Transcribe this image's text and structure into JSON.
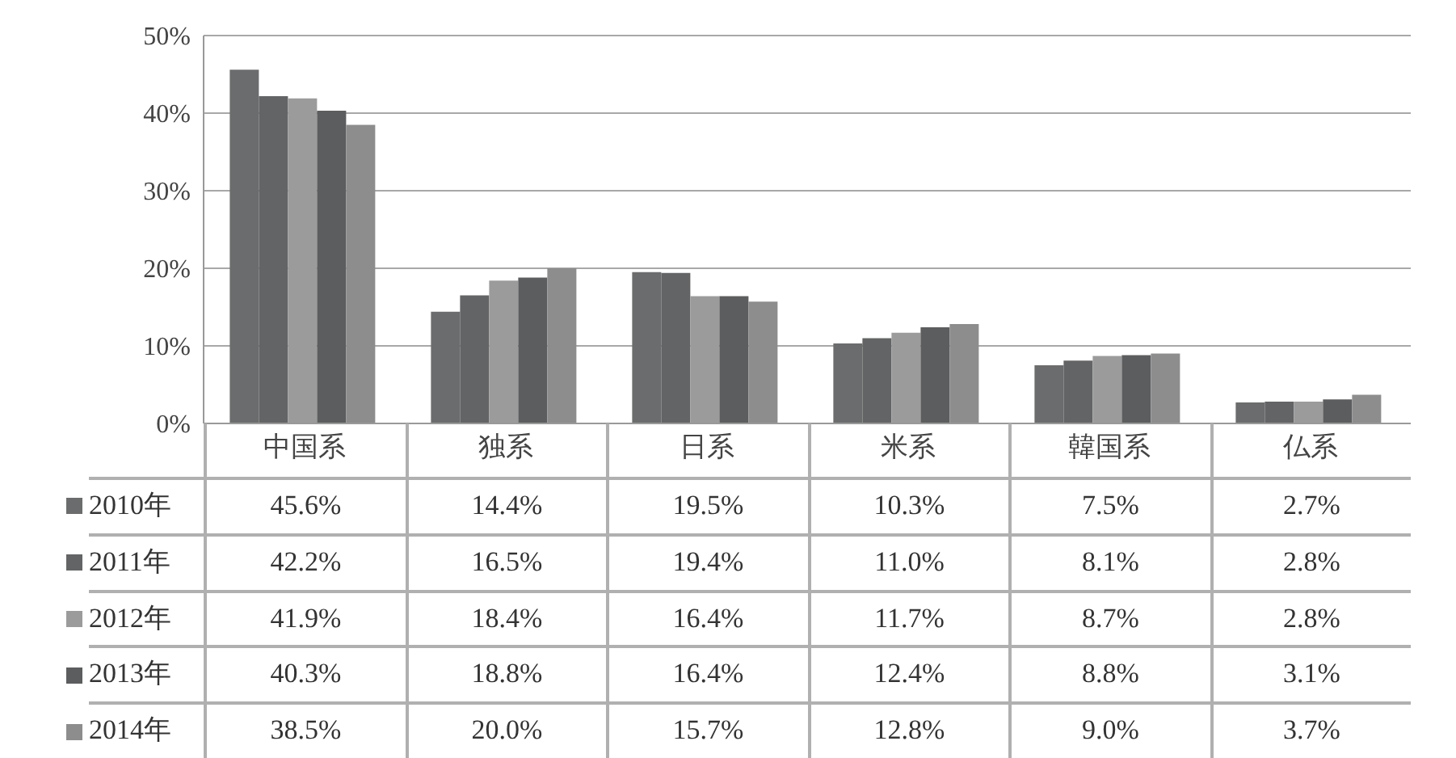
{
  "chart_data": {
    "type": "bar",
    "categories": [
      "中国系",
      "独系",
      "日系",
      "米系",
      "韓国系",
      "仏系"
    ],
    "series": [
      {
        "name": "2010年",
        "color": "#6b6c6d",
        "values": [
          45.6,
          14.4,
          19.5,
          10.3,
          7.5,
          2.7
        ],
        "value_labels": [
          "45.6%",
          "14.4%",
          "19.5%",
          "10.3%",
          "7.5%",
          "2.7%"
        ]
      },
      {
        "name": "2011年",
        "color": "#636465",
        "values": [
          42.2,
          16.5,
          19.4,
          11.0,
          8.1,
          2.8
        ],
        "value_labels": [
          "42.2%",
          "16.5%",
          "19.4%",
          "11.0%",
          "8.1%",
          "2.8%"
        ]
      },
      {
        "name": "2012年",
        "color": "#9b9b9c",
        "values": [
          41.9,
          18.4,
          16.4,
          11.7,
          8.7,
          2.8
        ],
        "value_labels": [
          "41.9%",
          "18.4%",
          "16.4%",
          "11.7%",
          "8.7%",
          "2.8%"
        ]
      },
      {
        "name": "2013年",
        "color": "#5c5d5e",
        "values": [
          40.3,
          18.8,
          16.4,
          12.4,
          8.8,
          3.1
        ],
        "value_labels": [
          "40.3%",
          "18.8%",
          "16.4%",
          "12.4%",
          "8.8%",
          "3.1%"
        ]
      },
      {
        "name": "2014年",
        "color": "#8d8d8e",
        "values": [
          38.5,
          20.0,
          15.7,
          12.8,
          9.0,
          3.7
        ],
        "value_labels": [
          "38.5%",
          "20.0%",
          "15.7%",
          "12.8%",
          "9.0%",
          "3.7%"
        ]
      }
    ],
    "ylim": [
      0,
      50
    ],
    "yticks": [
      {
        "value": 0,
        "label": "0%"
      },
      {
        "value": 10,
        "label": "10%"
      },
      {
        "value": 20,
        "label": "20%"
      },
      {
        "value": 30,
        "label": "30%"
      },
      {
        "value": 40,
        "label": "40%"
      },
      {
        "value": 50,
        "label": "50%"
      }
    ],
    "grid": "y",
    "legend": "bottom left"
  }
}
